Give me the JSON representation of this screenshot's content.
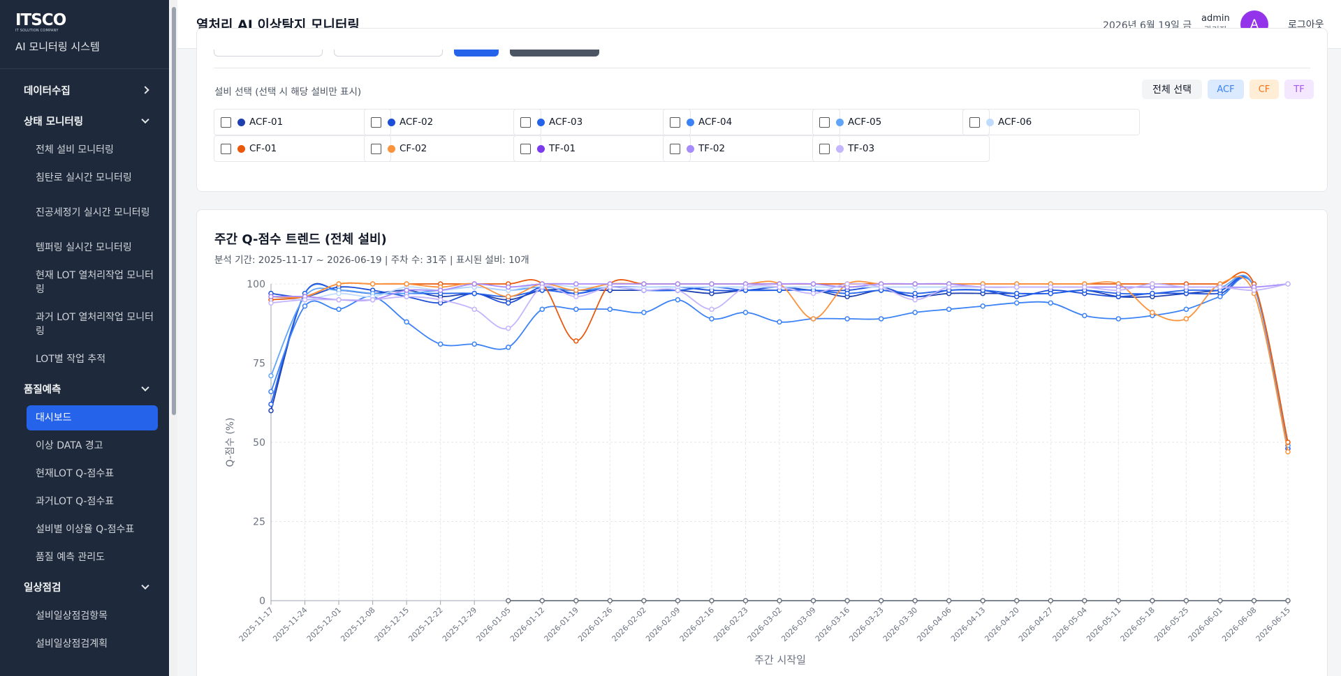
{
  "sidebar": {
    "logo": "ITSCO",
    "logo_sub": "IT SOLUTION COMPANY",
    "title": "AI 모니터링 시스템",
    "items": [
      {
        "kind": "group",
        "label": "데이터수집",
        "chevron": "right"
      },
      {
        "kind": "group",
        "label": "상태 모니터링",
        "chevron": "down"
      },
      {
        "kind": "item",
        "label": "전체 설비 모니터링"
      },
      {
        "kind": "item",
        "label": "침탄로 실시간 모니터링"
      },
      {
        "kind": "item",
        "label": "진공세정기 실시간 모니터링",
        "tall": true
      },
      {
        "kind": "item",
        "label": "템퍼링 실시간 모니터링"
      },
      {
        "kind": "item",
        "label": "현재 LOT 열처리작업 모니터링",
        "tall": true
      },
      {
        "kind": "item",
        "label": "과거 LOT 열처리작업 모니터링",
        "tall": true
      },
      {
        "kind": "item",
        "label": "LOT별 작업 추적"
      },
      {
        "kind": "group",
        "label": "품질예측",
        "chevron": "down"
      },
      {
        "kind": "item",
        "label": "대시보드",
        "active": true
      },
      {
        "kind": "item",
        "label": "이상 DATA 경고"
      },
      {
        "kind": "item",
        "label": "현재LOT Q-점수표"
      },
      {
        "kind": "item",
        "label": "과거LOT Q-점수표"
      },
      {
        "kind": "item",
        "label": "설비별 이상율 Q-점수표"
      },
      {
        "kind": "item",
        "label": "품질 예측 관리도"
      },
      {
        "kind": "group",
        "label": "일상점검",
        "chevron": "down"
      },
      {
        "kind": "item",
        "label": "설비일상점검항목"
      },
      {
        "kind": "item",
        "label": "설비일상점검계획"
      }
    ]
  },
  "header": {
    "title": "열처리 AI 이상탐지 모니터링",
    "date": "2026년 6월 19일 금",
    "user_name": "admin",
    "user_role": "관리자",
    "avatar_letter": "A",
    "logout": "로그아웃"
  },
  "filter": {
    "label": "설비 선택 (선택 시 해당 설비만 표시)",
    "select_all": "전체 선택",
    "chips": {
      "acf": "ACF",
      "cf": "CF",
      "tf": "TF"
    },
    "equipment": [
      {
        "name": "ACF-01",
        "color": "#1e40af",
        "checked": false
      },
      {
        "name": "ACF-02",
        "color": "#1d4ed8",
        "checked": false
      },
      {
        "name": "ACF-03",
        "color": "#2563eb",
        "checked": false
      },
      {
        "name": "ACF-04",
        "color": "#3b82f6",
        "checked": false
      },
      {
        "name": "ACF-05",
        "color": "#60a5fa",
        "checked": false
      },
      {
        "name": "ACF-06",
        "color": "#bfdbfe",
        "checked": false
      },
      {
        "name": "CF-01",
        "color": "#ea580c",
        "checked": false
      },
      {
        "name": "CF-02",
        "color": "#fb923c",
        "checked": false
      },
      {
        "name": "TF-01",
        "color": "#7c3aed",
        "checked": false
      },
      {
        "name": "TF-02",
        "color": "#a78bfa",
        "checked": false
      },
      {
        "name": "TF-03",
        "color": "#c4b5fd",
        "checked": false
      }
    ]
  },
  "chart": {
    "title": "주간 Q-점수 트렌드 (전체 설비)",
    "meta": "분석 기간: 2025-11-17 ~ 2026-06-19 | 주차 수: 31주 | 표시된 설비: 10개"
  },
  "chart_data": {
    "type": "line",
    "xlabel": "주간 시작일",
    "ylabel": "Q-점수 (%)",
    "ylim": [
      0,
      100
    ],
    "yticks": [
      0,
      25,
      50,
      75,
      100
    ],
    "grid": true,
    "x": [
      "2025-11-17",
      "2025-11-24",
      "2025-12-01",
      "2025-12-08",
      "2025-12-15",
      "2025-12-22",
      "2025-12-29",
      "2026-01-05",
      "2026-01-12",
      "2026-01-19",
      "2026-01-26",
      "2026-02-02",
      "2026-02-09",
      "2026-02-16",
      "2026-02-23",
      "2026-03-02",
      "2026-03-09",
      "2026-03-16",
      "2026-03-23",
      "2026-03-30",
      "2026-04-06",
      "2026-04-13",
      "2026-04-20",
      "2026-04-27",
      "2026-05-04",
      "2026-05-11",
      "2026-05-18",
      "2026-05-25",
      "2026-06-01",
      "2026-06-08",
      "2026-06-15"
    ],
    "series": [
      {
        "name": "ACF-01",
        "color": "#1e40af",
        "values": [
          60,
          97,
          98,
          97,
          98,
          96,
          97,
          95,
          98,
          98,
          98,
          98,
          98,
          97,
          98,
          98,
          98,
          96,
          98,
          96,
          97,
          97,
          97,
          97,
          98,
          96,
          96,
          97,
          98,
          99,
          49
        ]
      },
      {
        "name": "ACF-02",
        "color": "#1d4ed8",
        "values": [
          97,
          96,
          99,
          98,
          96,
          94,
          97,
          94,
          99,
          97,
          99,
          99,
          99,
          98,
          98,
          99,
          98,
          98,
          99,
          96,
          98,
          98,
          96,
          98,
          97,
          96,
          97,
          97,
          97,
          99,
          48
        ]
      },
      {
        "name": "ACF-03",
        "color": "#2563eb",
        "values": [
          62,
          97,
          98,
          97,
          97,
          97,
          97,
          96,
          98,
          97,
          99,
          98,
          98,
          99,
          98,
          98,
          98,
          97,
          98,
          97,
          98,
          98,
          97,
          97,
          98,
          97,
          97,
          98,
          98,
          99,
          49
        ]
      },
      {
        "name": "ACF-04",
        "color": "#3b82f6",
        "values": [
          66,
          93,
          92,
          96,
          88,
          81,
          81,
          80,
          92,
          92,
          92,
          91,
          95,
          89,
          91,
          88,
          89,
          89,
          89,
          91,
          92,
          93,
          94,
          94,
          90,
          89,
          90,
          92,
          96,
          99,
          49
        ]
      },
      {
        "name": "ACF-05",
        "color": "#60a5fa",
        "values": [
          71,
          96,
          98,
          97,
          97,
          98,
          99,
          98,
          99,
          98,
          99,
          99,
          99,
          99,
          99,
          99,
          99,
          99,
          99,
          99,
          99,
          99,
          99,
          99,
          99,
          99,
          99,
          99,
          99,
          99,
          49
        ]
      },
      {
        "name": "ACF-06",
        "color": "#bfdbfe",
        "values": [
          96,
          95,
          97,
          96,
          99,
          98,
          99,
          98,
          100,
          99,
          99,
          99,
          99,
          99,
          99,
          99,
          99,
          99,
          99,
          99,
          99,
          99,
          99,
          99,
          99,
          99,
          99,
          99,
          99,
          99,
          100
        ]
      },
      {
        "name": "CF-01",
        "color": "#ea580c",
        "values": [
          95,
          96,
          100,
          100,
          100,
          100,
          100,
          100,
          100,
          82,
          100,
          100,
          100,
          100,
          100,
          100,
          100,
          100,
          100,
          100,
          100,
          100,
          100,
          100,
          100,
          100,
          100,
          100,
          100,
          100,
          50
        ]
      },
      {
        "name": "CF-02",
        "color": "#fb923c",
        "values": [
          96,
          96,
          100,
          100,
          100,
          99,
          100,
          96,
          100,
          98,
          100,
          100,
          100,
          100,
          100,
          100,
          89,
          100,
          100,
          100,
          100,
          100,
          100,
          100,
          100,
          100,
          91,
          89,
          100,
          97,
          47
        ]
      },
      {
        "name": "TF-02",
        "color": "#a78bfa",
        "values": [
          96,
          96,
          95,
          95,
          98,
          98,
          100,
          99,
          100,
          100,
          100,
          100,
          100,
          100,
          100,
          100,
          100,
          99,
          100,
          100,
          100,
          99,
          99,
          99,
          99,
          99,
          99,
          99,
          99,
          99,
          100
        ]
      },
      {
        "name": "TF-03",
        "color": "#c4b5fd",
        "values": [
          94,
          95,
          95,
          95,
          96,
          95,
          92,
          86,
          99,
          96,
          99,
          98,
          98,
          92,
          99,
          99,
          97,
          100,
          99,
          95,
          99,
          99,
          99,
          99,
          99,
          98,
          100,
          99,
          99,
          98,
          100
        ]
      },
      {
        "name": "TF-01",
        "color": "#6b7280",
        "values": [
          null,
          null,
          null,
          null,
          null,
          null,
          null,
          0,
          0,
          0,
          0,
          0,
          0,
          0,
          0,
          0,
          0,
          0,
          0,
          0,
          0,
          0,
          0,
          0,
          0,
          0,
          0,
          0,
          0,
          0,
          0
        ]
      }
    ]
  }
}
